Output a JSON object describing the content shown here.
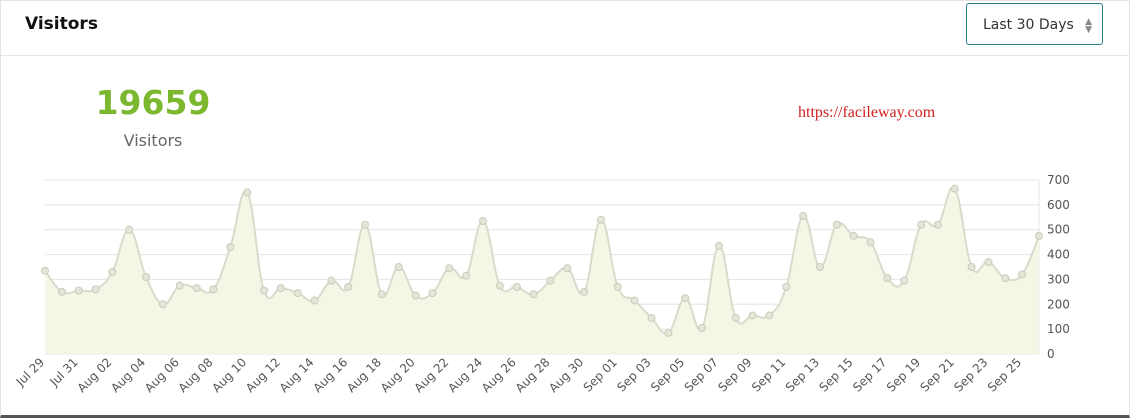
{
  "header": {
    "title": "Visitors",
    "select": "Last 30 Days"
  },
  "summary": {
    "value": 19659,
    "label": "Visitors"
  },
  "watermark": "https://facileway.com",
  "chart_data": {
    "type": "line",
    "categories": [
      "Jul 29",
      null,
      "Jul 31",
      null,
      "Aug 02",
      null,
      "Aug 04",
      null,
      "Aug 06",
      null,
      "Aug 08",
      null,
      "Aug 10",
      null,
      "Aug 12",
      null,
      "Aug 14",
      null,
      "Aug 16",
      null,
      "Aug 18",
      null,
      "Aug 20",
      null,
      "Aug 22",
      null,
      "Aug 24",
      null,
      "Aug 26",
      null,
      "Aug 28",
      null,
      "Aug 30",
      null,
      "Sep 01",
      null,
      "Sep 03",
      null,
      "Sep 05",
      null,
      "Sep 07",
      null,
      "Sep 09",
      null,
      "Sep 11",
      null,
      "Sep 13",
      null,
      "Sep 15",
      null,
      "Sep 17",
      null,
      "Sep 19",
      null,
      "Sep 21",
      null,
      "Sep 23",
      null,
      "Sep 25",
      null
    ],
    "values": [
      335,
      250,
      255,
      260,
      330,
      500,
      310,
      200,
      275,
      265,
      260,
      430,
      650,
      255,
      265,
      245,
      215,
      295,
      270,
      520,
      240,
      350,
      235,
      245,
      345,
      315,
      535,
      275,
      270,
      240,
      295,
      345,
      250,
      540,
      270,
      215,
      145,
      85,
      225,
      105,
      435,
      145,
      155,
      155,
      270,
      555,
      350,
      520,
      475,
      450,
      305,
      295,
      520,
      520,
      665,
      350,
      370,
      305,
      320,
      475
    ],
    "color": "#d8dccb",
    "area_color": "#f3f7e6",
    "point_color": "#e4e6d8",
    "ylim": [
      0,
      700
    ],
    "yticks": [
      0,
      100,
      200,
      300,
      400,
      500,
      600,
      700
    ],
    "grid": true
  }
}
